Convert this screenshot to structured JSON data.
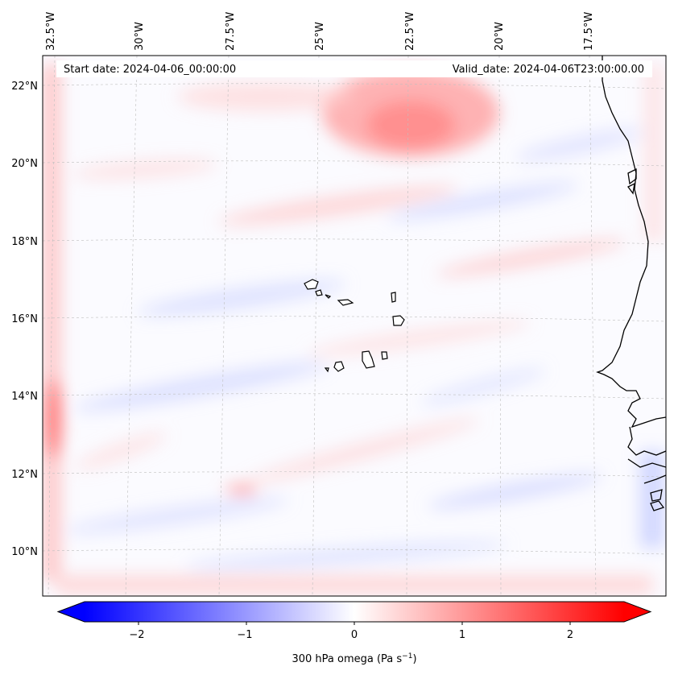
{
  "header": {
    "start_date": "Start date: 2024-04-06_00:00:00",
    "valid_date": "Valid_date: 2024-04-06T23:00:00.00"
  },
  "map": {
    "lon_labels": [
      "32.5°W",
      "30°W",
      "27.5°W",
      "25°W",
      "22.5°W",
      "20°W",
      "17.5°W"
    ],
    "lat_labels": [
      "22°N",
      "20°N",
      "18°N",
      "16°N",
      "14°N",
      "12°N",
      "10°N"
    ],
    "gridlines": true,
    "field_colors": {
      "positive": "#ff0000",
      "negative": "#0000ff",
      "neutral": "#ffffff"
    }
  },
  "colorbar": {
    "ticks": [
      "−2",
      "−1",
      "0",
      "1",
      "2"
    ],
    "tick_values": [
      -2,
      -1,
      0,
      1,
      2
    ],
    "range": [
      -2.5,
      2.5
    ],
    "label_main": "300 hPa omega (Pa s",
    "label_sup": "−1",
    "label_end": ")",
    "extend": "both"
  }
}
